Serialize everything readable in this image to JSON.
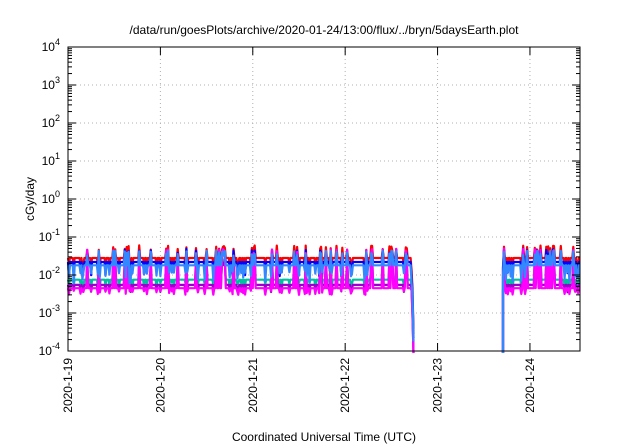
{
  "chart_data": {
    "type": "line",
    "title": "/data/run/goesPlots/archive/2020-01-24/13:00/flux/../bryn/5daysEarth.plot",
    "xlabel": "Coordinated Universal Time (UTC)",
    "ylabel": "cGy/day",
    "y_scale": "log",
    "ylim": [
      0.0001,
      10000
    ],
    "xlim": [
      "2020-01-19",
      "2020-01-24 13:00"
    ],
    "grid": true,
    "legend": "none",
    "x_ticks": [
      "2020-1-19",
      "2020-1-20",
      "2020-1-21",
      "2020-1-22",
      "2020-1-23",
      "2020-1-24"
    ],
    "y_ticks": [
      {
        "base": "10",
        "exp": "-4"
      },
      {
        "base": "10",
        "exp": "-3"
      },
      {
        "base": "10",
        "exp": "-2"
      },
      {
        "base": "10",
        "exp": "-1"
      },
      {
        "base": "10",
        "exp": "0"
      },
      {
        "base": "10",
        "exp": "1"
      },
      {
        "base": "10",
        "exp": "2"
      },
      {
        "base": "10",
        "exp": "3"
      },
      {
        "base": "10",
        "exp": "4"
      }
    ],
    "data_gap": [
      "2020-01-22 18:00",
      "2020-01-23 17:00"
    ],
    "series": [
      {
        "color": "#ff0000",
        "baseline": 0.028,
        "spike_max": 0.06,
        "dip_min": 0.012
      },
      {
        "color": "#0000ff",
        "baseline": 0.022,
        "spike_max": 0.05,
        "dip_min": 0.009
      },
      {
        "color": "#00c0a0",
        "baseline": 0.0075,
        "spike_max": 0.03,
        "dip_min": 0.0045
      },
      {
        "color": "#9900cc",
        "baseline": 0.0055,
        "spike_max": 0.025,
        "dip_min": 0.0035
      },
      {
        "color": "#ff00ff",
        "baseline": 0.0045,
        "spike_max": 0.05,
        "dip_min": 0.003
      },
      {
        "color": "#3388ff",
        "baseline": 0.018,
        "spike_max": 0.045,
        "dip_min": 0.006
      }
    ]
  }
}
